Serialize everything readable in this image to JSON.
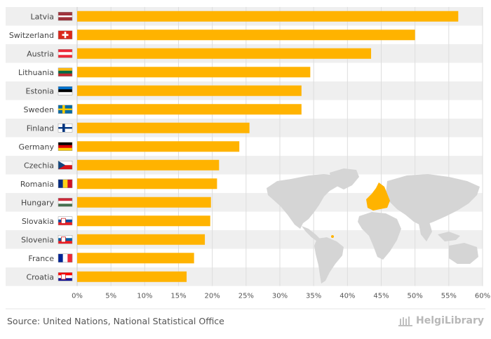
{
  "chart_data": {
    "type": "bar",
    "orientation": "horizontal",
    "categories": [
      "Latvia",
      "Switzerland",
      "Austria",
      "Lithuania",
      "Estonia",
      "Sweden",
      "Finland",
      "Germany",
      "Czechia",
      "Romania",
      "Hungary",
      "Slovakia",
      "Slovenia",
      "France",
      "Croatia"
    ],
    "values": [
      56.4,
      50.0,
      43.5,
      34.5,
      33.2,
      33.2,
      25.5,
      24.0,
      21.0,
      20.7,
      19.8,
      19.7,
      18.9,
      17.3,
      16.2
    ],
    "xlim": [
      0,
      60
    ],
    "xticks": [
      "0%",
      "5%",
      "10%",
      "15%",
      "20%",
      "25%",
      "30%",
      "35%",
      "40%",
      "45%",
      "50%",
      "55%",
      "60%"
    ],
    "bar_color": "#FFB300",
    "grid": true
  },
  "colors": {
    "bar": "#FFB300",
    "row_band": "#EFEFEF",
    "map_land": "#D5D5D5",
    "map_highlight": "#FFB300"
  },
  "footer": {
    "source": "Source: United Nations, National Statistical Office",
    "brand": "HelgiLibrary"
  }
}
